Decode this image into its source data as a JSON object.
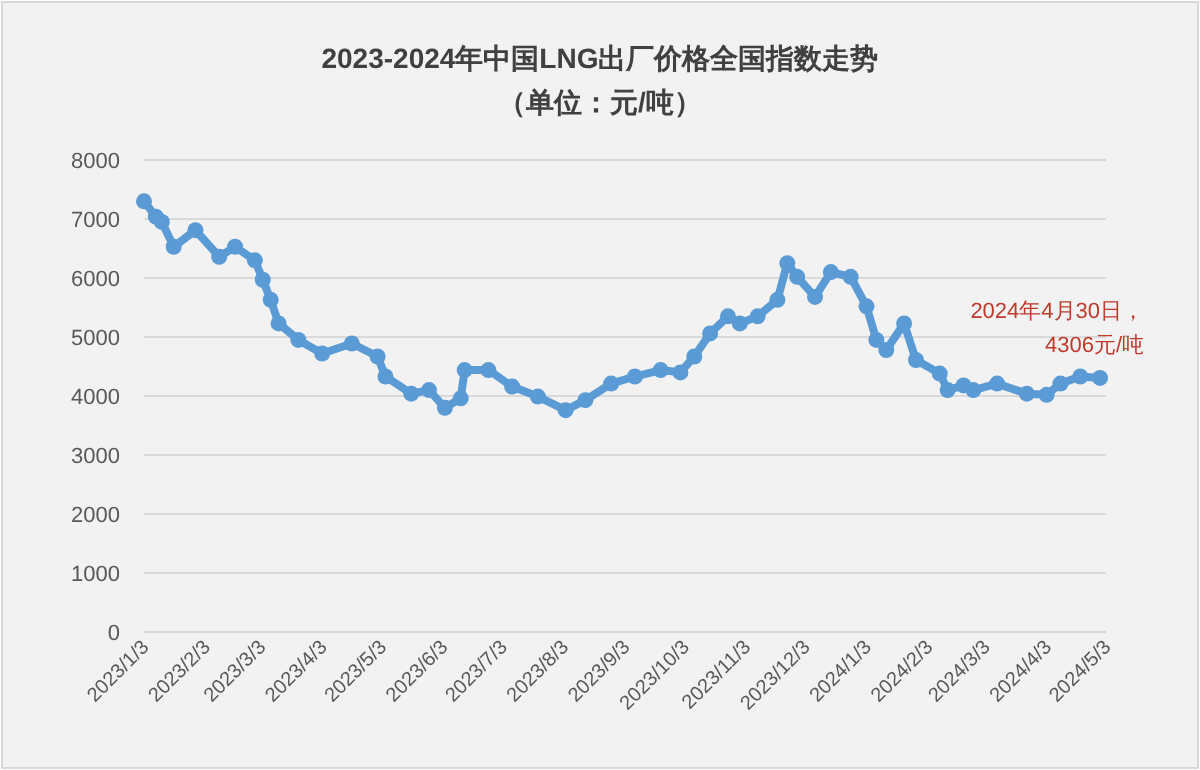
{
  "chart_data": {
    "type": "line",
    "title": "2023-2024年中国LNG出厂价格全国指数走势",
    "subtitle": "（单位：元/吨）",
    "x": [
      "2023-01-03",
      "2023-01-09",
      "2023-01-12",
      "2023-01-18",
      "2023-01-29",
      "2023-02-10",
      "2023-02-18",
      "2023-02-28",
      "2023-03-04",
      "2023-03-08",
      "2023-03-12",
      "2023-03-22",
      "2023-04-03",
      "2023-04-18",
      "2023-05-01",
      "2023-05-05",
      "2023-05-18",
      "2023-05-27",
      "2023-06-04",
      "2023-06-12",
      "2023-06-14",
      "2023-06-26",
      "2023-07-08",
      "2023-07-21",
      "2023-08-04",
      "2023-08-14",
      "2023-08-27",
      "2023-09-08",
      "2023-09-21",
      "2023-10-01",
      "2023-10-08",
      "2023-10-16",
      "2023-10-25",
      "2023-10-31",
      "2023-11-09",
      "2023-11-19",
      "2023-11-24",
      "2023-11-29",
      "2023-12-08",
      "2023-12-16",
      "2023-12-26",
      "2024-01-03",
      "2024-01-08",
      "2024-01-13",
      "2024-01-22",
      "2024-01-28",
      "2024-02-09",
      "2024-02-13",
      "2024-02-21",
      "2024-02-26",
      "2024-03-09",
      "2024-03-24",
      "2024-04-03",
      "2024-04-10",
      "2024-04-20",
      "2024-04-30"
    ],
    "series": [
      {
        "color": "#5b9bd5",
        "values": [
          7300,
          7040,
          6950,
          6530,
          6810,
          6360,
          6530,
          6300,
          5970,
          5630,
          5230,
          4950,
          4720,
          4890,
          4670,
          4330,
          4040,
          4100,
          3800,
          3960,
          4440,
          4440,
          4160,
          3990,
          3760,
          3930,
          4210,
          4330,
          4440,
          4400,
          4670,
          5060,
          5350,
          5230,
          5350,
          5630,
          6250,
          6020,
          5680,
          6100,
          6020,
          5520,
          4950,
          4780,
          5230,
          4610,
          4380,
          4100,
          4180,
          4100,
          4210,
          4040,
          4020,
          4210,
          4330,
          4306
        ]
      }
    ],
    "ylim": [
      0,
      8000
    ],
    "yticks": [
      0,
      1000,
      2000,
      3000,
      4000,
      5000,
      6000,
      7000,
      8000
    ],
    "xlim": [
      "2023-01-03",
      "2024-05-03"
    ],
    "xticks": [
      {
        "value": "2023-01-03",
        "label": "2023/1/3"
      },
      {
        "value": "2023-02-03",
        "label": "2023/2/3"
      },
      {
        "value": "2023-03-03",
        "label": "2023/3/3"
      },
      {
        "value": "2023-04-03",
        "label": "2023/4/3"
      },
      {
        "value": "2023-05-03",
        "label": "2023/5/3"
      },
      {
        "value": "2023-06-03",
        "label": "2023/6/3"
      },
      {
        "value": "2023-07-03",
        "label": "2023/7/3"
      },
      {
        "value": "2023-08-03",
        "label": "2023/8/3"
      },
      {
        "value": "2023-09-03",
        "label": "2023/9/3"
      },
      {
        "value": "2023-10-03",
        "label": "2023/10/3"
      },
      {
        "value": "2023-11-03",
        "label": "2023/11/3"
      },
      {
        "value": "2023-12-03",
        "label": "2023/12/3"
      },
      {
        "value": "2024-01-03",
        "label": "2024/1/3"
      },
      {
        "value": "2024-02-03",
        "label": "2024/2/3"
      },
      {
        "value": "2024-03-03",
        "label": "2024/3/3"
      },
      {
        "value": "2024-04-03",
        "label": "2024/4/3"
      },
      {
        "value": "2024-05-03",
        "label": "2024/5/3"
      }
    ],
    "grid": "y",
    "marker": "circle",
    "line_style": "solid",
    "annotations": [
      {
        "text": "2024年4月30日，\n4306元/吨",
        "x": "2024-04-30",
        "y": 4306
      }
    ]
  }
}
